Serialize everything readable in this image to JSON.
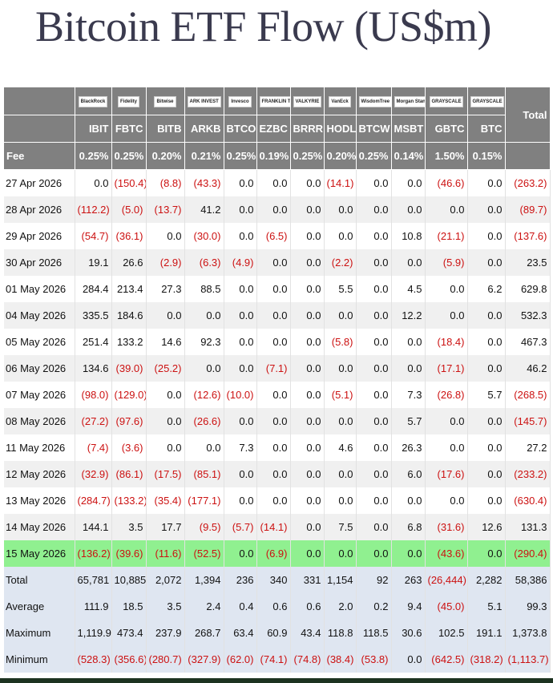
{
  "title": "Bitcoin ETF Flow (US$m)",
  "table": {
    "logos": [
      "BlackRock",
      "Fidelity",
      "Bitwise",
      "ARK INVEST",
      "Invesco",
      "FRANKLIN TEMPLETON",
      "VALKYRIE",
      "VanEck",
      "WisdomTree",
      "Morgan Stanley",
      "GRAYSCALE",
      "GRAYSCALE"
    ],
    "total_header": "Total",
    "columns": [
      "IBIT",
      "FBTC",
      "BITB",
      "ARKB",
      "BTCO",
      "EZBC",
      "BRRR",
      "HODL",
      "BTCW",
      "MSBT",
      "GBTC",
      "BTC"
    ],
    "fee": {
      "label": "Fee",
      "values": [
        "0.25%",
        "0.25%",
        "0.20%",
        "0.21%",
        "0.25%",
        "0.19%",
        "0.25%",
        "0.20%",
        "0.25%",
        "0.14%",
        "1.50%",
        "0.15%"
      ]
    },
    "rows": [
      {
        "date": "27 Apr 2026",
        "values": [
          "0.0",
          "(150.4)",
          "(8.8)",
          "(43.3)",
          "0.0",
          "0.0",
          "0.0",
          "(14.1)",
          "0.0",
          "0.0",
          "(46.6)",
          "0.0",
          "(263.2)"
        ]
      },
      {
        "date": "28 Apr 2026",
        "values": [
          "(112.2)",
          "(5.0)",
          "(13.7)",
          "41.2",
          "0.0",
          "0.0",
          "0.0",
          "0.0",
          "0.0",
          "0.0",
          "0.0",
          "0.0",
          "(89.7)"
        ]
      },
      {
        "date": "29 Apr 2026",
        "values": [
          "(54.7)",
          "(36.1)",
          "0.0",
          "(30.0)",
          "0.0",
          "(6.5)",
          "0.0",
          "0.0",
          "0.0",
          "10.8",
          "(21.1)",
          "0.0",
          "(137.6)"
        ]
      },
      {
        "date": "30 Apr 2026",
        "values": [
          "19.1",
          "26.6",
          "(2.9)",
          "(6.3)",
          "(4.9)",
          "0.0",
          "0.0",
          "(2.2)",
          "0.0",
          "0.0",
          "(5.9)",
          "0.0",
          "23.5"
        ]
      },
      {
        "date": "01 May 2026",
        "values": [
          "284.4",
          "213.4",
          "27.3",
          "88.5",
          "0.0",
          "0.0",
          "0.0",
          "5.5",
          "0.0",
          "4.5",
          "0.0",
          "6.2",
          "629.8"
        ]
      },
      {
        "date": "04 May 2026",
        "values": [
          "335.5",
          "184.6",
          "0.0",
          "0.0",
          "0.0",
          "0.0",
          "0.0",
          "0.0",
          "0.0",
          "12.2",
          "0.0",
          "0.0",
          "532.3"
        ]
      },
      {
        "date": "05 May 2026",
        "values": [
          "251.4",
          "133.2",
          "14.6",
          "92.3",
          "0.0",
          "0.0",
          "0.0",
          "(5.8)",
          "0.0",
          "0.0",
          "(18.4)",
          "0.0",
          "467.3"
        ]
      },
      {
        "date": "06 May 2026",
        "values": [
          "134.6",
          "(39.0)",
          "(25.2)",
          "0.0",
          "0.0",
          "(7.1)",
          "0.0",
          "0.0",
          "0.0",
          "0.0",
          "(17.1)",
          "0.0",
          "46.2"
        ]
      },
      {
        "date": "07 May 2026",
        "values": [
          "(98.0)",
          "(129.0)",
          "0.0",
          "(12.6)",
          "(10.0)",
          "0.0",
          "0.0",
          "(5.1)",
          "0.0",
          "7.3",
          "(26.8)",
          "5.7",
          "(268.5)"
        ]
      },
      {
        "date": "08 May 2026",
        "values": [
          "(27.2)",
          "(97.6)",
          "0.0",
          "(26.6)",
          "0.0",
          "0.0",
          "0.0",
          "0.0",
          "0.0",
          "5.7",
          "0.0",
          "0.0",
          "(145.7)"
        ]
      },
      {
        "date": "11 May 2026",
        "values": [
          "(7.4)",
          "(3.6)",
          "0.0",
          "0.0",
          "7.3",
          "0.0",
          "0.0",
          "4.6",
          "0.0",
          "26.3",
          "0.0",
          "0.0",
          "27.2"
        ]
      },
      {
        "date": "12 May 2026",
        "values": [
          "(32.9)",
          "(86.1)",
          "(17.5)",
          "(85.1)",
          "0.0",
          "0.0",
          "0.0",
          "0.0",
          "0.0",
          "6.0",
          "(17.6)",
          "0.0",
          "(233.2)"
        ]
      },
      {
        "date": "13 May 2026",
        "values": [
          "(284.7)",
          "(133.2)",
          "(35.4)",
          "(177.1)",
          "0.0",
          "0.0",
          "0.0",
          "0.0",
          "0.0",
          "0.0",
          "0.0",
          "0.0",
          "(630.4)"
        ]
      },
      {
        "date": "14 May 2026",
        "values": [
          "144.1",
          "3.5",
          "17.7",
          "(9.5)",
          "(5.7)",
          "(14.1)",
          "0.0",
          "7.5",
          "0.0",
          "6.8",
          "(31.6)",
          "12.6",
          "131.3"
        ]
      },
      {
        "date": "15 May 2026",
        "values": [
          "(136.2)",
          "(39.6)",
          "(11.6)",
          "(52.5)",
          "0.0",
          "(6.9)",
          "0.0",
          "0.0",
          "0.0",
          "0.0",
          "(43.6)",
          "0.0",
          "(290.4)"
        ]
      }
    ],
    "summary": [
      {
        "label": "Total",
        "values": [
          "65,781",
          "10,885",
          "2,072",
          "1,394",
          "236",
          "340",
          "331",
          "1,154",
          "92",
          "263",
          "(26,444)",
          "2,282",
          "58,386"
        ]
      },
      {
        "label": "Average",
        "values": [
          "111.9",
          "18.5",
          "3.5",
          "2.4",
          "0.4",
          "0.6",
          "0.6",
          "2.0",
          "0.2",
          "9.4",
          "(45.0)",
          "5.1",
          "99.3"
        ]
      },
      {
        "label": "Maximum",
        "values": [
          "1,119.9",
          "473.4",
          "237.9",
          "268.7",
          "63.4",
          "60.9",
          "43.4",
          "118.8",
          "118.5",
          "30.6",
          "102.5",
          "191.1",
          "1,373.8"
        ]
      },
      {
        "label": "Minimum",
        "values": [
          "(528.3)",
          "(356.6)",
          "(280.7)",
          "(327.9)",
          "(62.0)",
          "(74.1)",
          "(74.8)",
          "(38.4)",
          "(53.8)",
          "0.0",
          "(642.5)",
          "(318.2)",
          "(1,113.7)"
        ]
      }
    ]
  }
}
